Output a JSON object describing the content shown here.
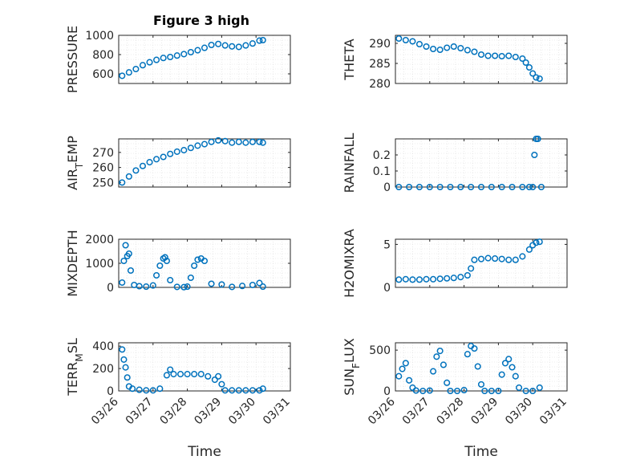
{
  "figure": {
    "title": "Figure 3 high",
    "xlabel": "Time",
    "xtick_labels": [
      "03/26",
      "03/27",
      "03/28",
      "03/29",
      "03/30",
      "03/31"
    ],
    "marker_color": "#0072BD"
  },
  "chart_data": [
    {
      "type": "scatter",
      "title": "Figure 3 high",
      "ylabel": "PRESSURE",
      "xlabel": "",
      "xlim": [
        "03/26",
        "03/31"
      ],
      "ylim": [
        500,
        1000
      ],
      "yticks": [
        "600",
        "800",
        "1000"
      ],
      "grid": true,
      "x": [
        26.1,
        26.3,
        26.5,
        26.7,
        26.9,
        27.1,
        27.3,
        27.5,
        27.7,
        27.9,
        28.1,
        28.3,
        28.5,
        28.7,
        28.9,
        29.1,
        29.3,
        29.5,
        29.7,
        29.9,
        30.1,
        30.2
      ],
      "y": [
        580,
        615,
        650,
        690,
        720,
        745,
        765,
        775,
        790,
        805,
        825,
        845,
        870,
        900,
        910,
        895,
        885,
        880,
        895,
        915,
        945,
        950
      ]
    },
    {
      "type": "scatter",
      "ylabel": "THETA",
      "xlabel": "",
      "xlim": [
        "03/26",
        "03/31"
      ],
      "ylim": [
        280,
        292
      ],
      "yticks": [
        "280",
        "285",
        "290"
      ],
      "grid": true,
      "x": [
        26.1,
        26.3,
        26.5,
        26.7,
        26.9,
        27.1,
        27.3,
        27.5,
        27.7,
        27.9,
        28.1,
        28.3,
        28.5,
        28.7,
        28.9,
        29.1,
        29.3,
        29.5,
        29.7,
        29.8,
        29.9,
        30.0,
        30.1,
        30.2
      ],
      "y": [
        291.2,
        290.8,
        290.5,
        289.8,
        289.2,
        288.6,
        288.4,
        288.9,
        289.2,
        288.8,
        288.3,
        287.9,
        287.2,
        286.9,
        286.9,
        286.8,
        286.9,
        286.6,
        286.2,
        285.2,
        284.0,
        282.5,
        281.5,
        281.2
      ]
    },
    {
      "type": "scatter",
      "ylabel": "AIR_TEMP",
      "xlabel": "",
      "xlim": [
        "03/26",
        "03/31"
      ],
      "ylim": [
        247,
        279
      ],
      "yticks": [
        "250",
        "260",
        "270"
      ],
      "grid": true,
      "x": [
        26.1,
        26.3,
        26.5,
        26.7,
        26.9,
        27.1,
        27.3,
        27.5,
        27.7,
        27.9,
        28.1,
        28.3,
        28.5,
        28.7,
        28.9,
        29.1,
        29.3,
        29.5,
        29.7,
        29.9,
        30.1,
        30.2
      ],
      "y": [
        250,
        254,
        258,
        261,
        263.5,
        265.5,
        267,
        269,
        270.5,
        271.5,
        273,
        274.5,
        275.5,
        277,
        278,
        277.5,
        276.5,
        277,
        276.5,
        277,
        277,
        276.5
      ]
    },
    {
      "type": "scatter",
      "ylabel": "RAINFALL",
      "xlabel": "",
      "xlim": [
        "03/26",
        "03/31"
      ],
      "ylim": [
        0,
        0.3
      ],
      "yticks": [
        "0",
        "0.1",
        "0.2"
      ],
      "grid": true,
      "x": [
        26.1,
        26.4,
        26.7,
        27.0,
        27.3,
        27.6,
        27.9,
        28.2,
        28.5,
        28.8,
        29.1,
        29.4,
        29.7,
        29.9,
        30.0,
        30.05,
        30.1,
        30.15,
        30.25
      ],
      "y": [
        0,
        0,
        0,
        0,
        0,
        0,
        0,
        0,
        0,
        0,
        0,
        0,
        0,
        0,
        0,
        0.2,
        0.3,
        0.3,
        0
      ]
    },
    {
      "type": "scatter",
      "ylabel": "MIXDEPTH",
      "xlabel": "",
      "xlim": [
        "03/26",
        "03/31"
      ],
      "ylim": [
        0,
        2000
      ],
      "yticks": [
        "0",
        "1000",
        "2000"
      ],
      "grid": true,
      "x": [
        26.1,
        26.15,
        26.2,
        26.25,
        26.3,
        26.35,
        26.45,
        26.6,
        26.8,
        27.0,
        27.1,
        27.2,
        27.3,
        27.35,
        27.4,
        27.5,
        27.7,
        27.9,
        28.0,
        28.1,
        28.2,
        28.3,
        28.4,
        28.5,
        28.7,
        29.0,
        29.3,
        29.6,
        29.9,
        30.1,
        30.2
      ],
      "y": [
        200,
        1100,
        1750,
        1300,
        1400,
        700,
        100,
        50,
        30,
        80,
        500,
        900,
        1200,
        1250,
        1100,
        300,
        20,
        10,
        30,
        400,
        900,
        1150,
        1200,
        1100,
        150,
        120,
        20,
        60,
        100,
        180,
        30
      ]
    },
    {
      "type": "scatter",
      "ylabel": "H2OMIXRA",
      "xlabel": "",
      "xlim": [
        "03/26",
        "03/31"
      ],
      "ylim": [
        0,
        5.6
      ],
      "yticks": [
        "0",
        "5"
      ],
      "grid": true,
      "x": [
        26.1,
        26.3,
        26.5,
        26.7,
        26.9,
        27.1,
        27.3,
        27.5,
        27.7,
        27.9,
        28.1,
        28.2,
        28.3,
        28.5,
        28.7,
        28.9,
        29.1,
        29.3,
        29.5,
        29.7,
        29.9,
        30.0,
        30.1,
        30.2
      ],
      "y": [
        0.9,
        0.95,
        0.9,
        0.9,
        0.95,
        0.95,
        1.0,
        1.05,
        1.1,
        1.2,
        1.4,
        2.2,
        3.2,
        3.3,
        3.4,
        3.35,
        3.3,
        3.2,
        3.2,
        3.6,
        4.4,
        4.9,
        5.2,
        5.3
      ]
    },
    {
      "type": "scatter",
      "ylabel": "TERR_MSL",
      "xlabel": "Time",
      "xlim": [
        "03/26",
        "03/31"
      ],
      "ylim": [
        0,
        430
      ],
      "yticks": [
        "0",
        "200",
        "400"
      ],
      "xticks": [
        "03/26",
        "03/27",
        "03/28",
        "03/29",
        "03/30",
        "03/31"
      ],
      "grid": true,
      "x": [
        26.1,
        26.15,
        26.2,
        26.25,
        26.3,
        26.4,
        26.6,
        26.8,
        27.0,
        27.2,
        27.4,
        27.5,
        27.6,
        27.8,
        28.0,
        28.2,
        28.4,
        28.6,
        28.8,
        28.9,
        29.0,
        29.1,
        29.3,
        29.5,
        29.7,
        29.9,
        30.1,
        30.2
      ],
      "y": [
        370,
        280,
        210,
        120,
        40,
        20,
        10,
        5,
        5,
        20,
        140,
        190,
        150,
        150,
        150,
        150,
        150,
        130,
        100,
        130,
        60,
        5,
        5,
        5,
        5,
        5,
        5,
        20
      ]
    },
    {
      "type": "scatter",
      "ylabel": "SUN_FLUX",
      "xlabel": "Time",
      "xlim": [
        "03/26",
        "03/31"
      ],
      "ylim": [
        0,
        590
      ],
      "yticks": [
        "0",
        "500"
      ],
      "xticks": [
        "03/26",
        "03/27",
        "03/28",
        "03/29",
        "03/30",
        "03/31"
      ],
      "grid": true,
      "x": [
        26.1,
        26.2,
        26.3,
        26.4,
        26.5,
        26.6,
        26.8,
        27.0,
        27.1,
        27.2,
        27.3,
        27.4,
        27.5,
        27.6,
        27.8,
        28.0,
        28.1,
        28.2,
        28.3,
        28.4,
        28.5,
        28.6,
        28.8,
        29.0,
        29.1,
        29.2,
        29.3,
        29.4,
        29.5,
        29.6,
        29.8,
        30.0,
        30.2
      ],
      "y": [
        180,
        270,
        340,
        130,
        40,
        5,
        0,
        5,
        240,
        420,
        490,
        320,
        100,
        0,
        0,
        10,
        450,
        550,
        520,
        300,
        80,
        0,
        0,
        0,
        200,
        340,
        390,
        290,
        180,
        40,
        0,
        0,
        40
      ]
    }
  ]
}
